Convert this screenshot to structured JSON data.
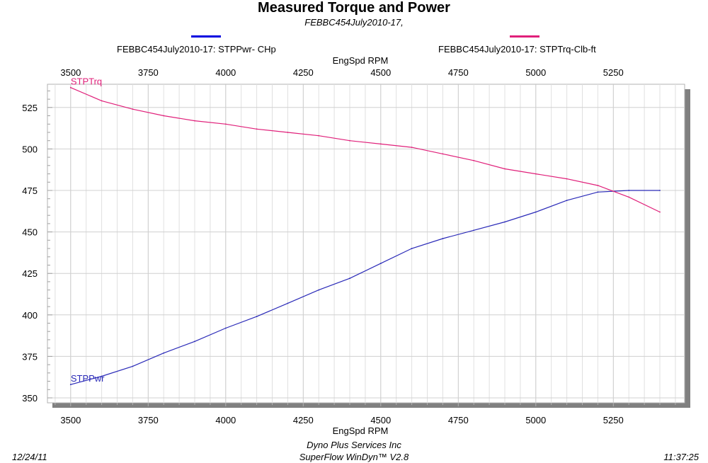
{
  "chart_data": {
    "type": "line",
    "title": "Measured Torque and Power",
    "subtitle": "FEBBC454July2010-17,",
    "xlabel_top": "EngSpd  RPM",
    "xlabel_bottom": "EngSpd  RPM",
    "xlim": [
      3425,
      5480
    ],
    "ylim": [
      347,
      539
    ],
    "x_ticks": [
      3500,
      3750,
      4000,
      4250,
      4500,
      4750,
      5000,
      5250
    ],
    "y_ticks": [
      350,
      375,
      400,
      425,
      450,
      475,
      500,
      525
    ],
    "grid": true,
    "legend_position": "top",
    "series": [
      {
        "name": "FEBBC454July2010-17: STPPwr- CHp",
        "line_label": "STPPwr",
        "color": "#2a2ab8",
        "legend_color": "#0000e0",
        "x": [
          3500,
          3600,
          3700,
          3800,
          3900,
          4000,
          4100,
          4200,
          4300,
          4400,
          4500,
          4600,
          4700,
          4800,
          4900,
          5000,
          5100,
          5200,
          5300,
          5400
        ],
        "values": [
          358,
          363,
          369,
          377,
          384,
          392,
          399,
          407,
          415,
          422,
          431,
          440,
          446,
          451,
          456,
          462,
          469,
          474,
          475,
          475
        ]
      },
      {
        "name": "FEBBC454July2010-17: STPTrq-Clb-ft",
        "line_label": "STPTrq",
        "color": "#e0207a",
        "legend_color": "#e0207a",
        "x": [
          3500,
          3600,
          3700,
          3800,
          3900,
          4000,
          4100,
          4200,
          4300,
          4400,
          4500,
          4600,
          4700,
          4800,
          4900,
          5000,
          5100,
          5200,
          5300,
          5400
        ],
        "values": [
          537,
          529,
          524,
          520,
          517,
          515,
          512,
          510,
          508,
          505,
          503,
          501,
          497,
          493,
          488,
          485,
          482,
          478,
          471,
          462
        ]
      }
    ]
  },
  "footer": {
    "date": "12/24/11",
    "company": "Dyno Plus Services Inc",
    "software": "SuperFlow WinDyn™ V2.8",
    "time": "11:37:25"
  }
}
